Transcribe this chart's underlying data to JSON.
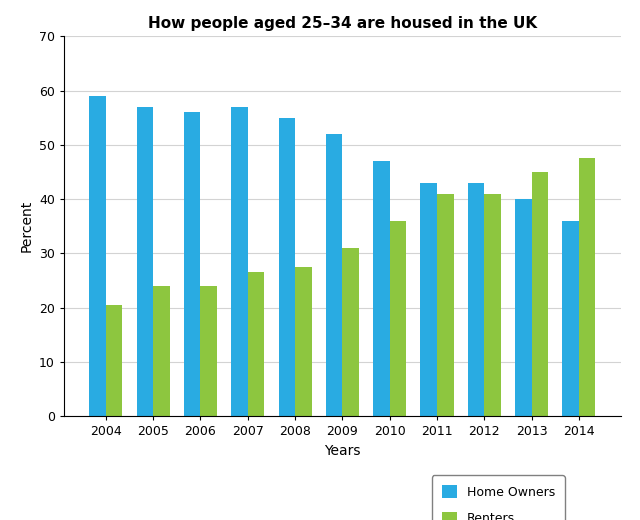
{
  "title": "How people aged 25–34 are housed in the UK",
  "xlabel": "Years",
  "ylabel": "Percent",
  "years": [
    2004,
    2005,
    2006,
    2007,
    2008,
    2009,
    2010,
    2011,
    2012,
    2013,
    2014
  ],
  "home_owners": [
    59,
    57,
    56,
    57,
    55,
    52,
    47,
    43,
    43,
    40,
    36
  ],
  "renters": [
    20.5,
    24,
    24,
    26.5,
    27.5,
    31,
    36,
    41,
    41,
    45,
    47.5
  ],
  "home_owners_color": "#29ABE2",
  "renters_color": "#8DC63F",
  "ylim": [
    0,
    70
  ],
  "yticks": [
    0,
    10,
    20,
    30,
    40,
    50,
    60,
    70
  ],
  "bar_width": 0.35,
  "background_color": "#ffffff",
  "legend_labels": [
    "Home Owners",
    "Renters"
  ],
  "title_fontsize": 11,
  "axis_label_fontsize": 10,
  "tick_fontsize": 9,
  "legend_fontsize": 9
}
